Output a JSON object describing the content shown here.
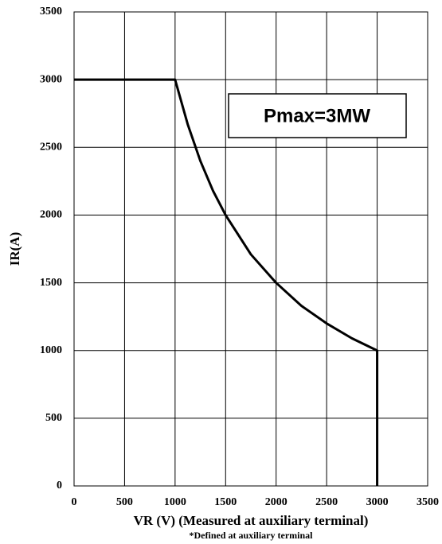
{
  "chart_data": {
    "type": "line",
    "x": [
      0,
      1000,
      1125,
      1250,
      1375,
      1500,
      1750,
      2000,
      2250,
      2500,
      2750,
      3000,
      3000
    ],
    "series": [
      {
        "name": "IR",
        "color": "#000000",
        "values": [
          3000,
          3000,
          2670,
          2400,
          2180,
          2000,
          1710,
          1500,
          1330,
          1200,
          1090,
          1000,
          0
        ]
      }
    ],
    "xlim": [
      0,
      3500
    ],
    "xticks": [
      0,
      500,
      1000,
      1500,
      2000,
      2500,
      3000,
      3500
    ],
    "ylim": [
      0,
      3500
    ],
    "yticks": [
      0,
      500,
      1000,
      1500,
      2000,
      2500,
      3000,
      3500
    ],
    "grid": true,
    "xlabel": "VR (V) (Measured at auxiliary terminal)",
    "xlabel_note": "*Defined at auxiliary terminal",
    "ylabel": "IR(A)",
    "annotation": "Pmax=3MW"
  }
}
